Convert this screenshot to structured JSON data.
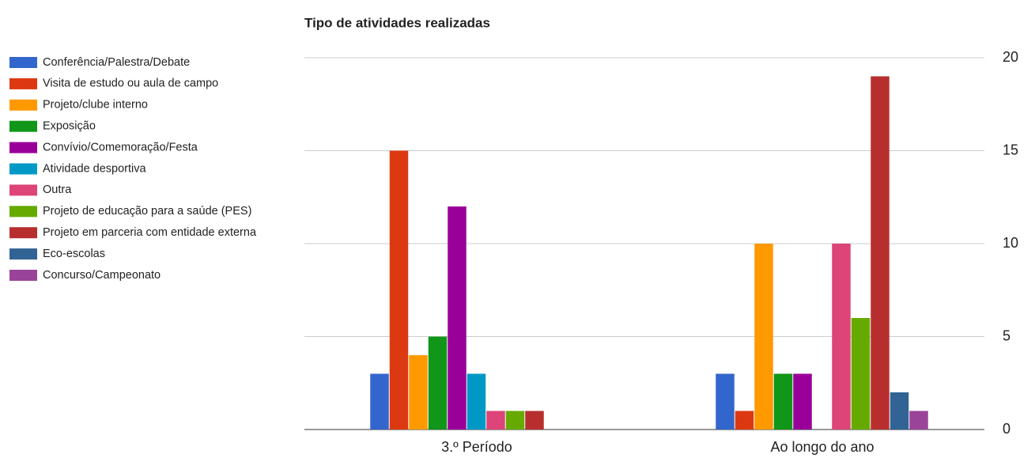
{
  "chart_data": {
    "type": "bar",
    "title": "Tipo de atividades realizadas",
    "categories": [
      "3.º Período",
      "Ao longo do ano"
    ],
    "series": [
      {
        "name": "Conferência/Palestra/Debate",
        "color": "#3366cc",
        "values": [
          3,
          3
        ]
      },
      {
        "name": "Visita de estudo ou aula de campo",
        "color": "#dc3912",
        "values": [
          15,
          1
        ]
      },
      {
        "name": "Projeto/clube interno",
        "color": "#ff9900",
        "values": [
          4,
          10
        ]
      },
      {
        "name": "Exposição",
        "color": "#109618",
        "values": [
          5,
          3
        ]
      },
      {
        "name": "Convívio/Comemoração/Festa",
        "color": "#990099",
        "values": [
          12,
          3
        ]
      },
      {
        "name": "Atividade desportiva",
        "color": "#0099c6",
        "values": [
          3,
          0
        ]
      },
      {
        "name": "Outra",
        "color": "#dd4477",
        "values": [
          1,
          10
        ]
      },
      {
        "name": "Projeto de educação para a saúde (PES)",
        "color": "#66aa00",
        "values": [
          1,
          6
        ]
      },
      {
        "name": "Projeto em parceria com entidade externa",
        "color": "#b82e2e",
        "values": [
          1,
          19
        ]
      },
      {
        "name": "Eco-escolas",
        "color": "#316395",
        "values": [
          0,
          2
        ]
      },
      {
        "name": "Concurso/Campeonato",
        "color": "#994499",
        "values": [
          0,
          1
        ]
      }
    ],
    "ylim": [
      0,
      20
    ],
    "yticks": [
      0,
      5,
      10,
      15,
      20
    ],
    "grid": true,
    "legend": "left"
  }
}
